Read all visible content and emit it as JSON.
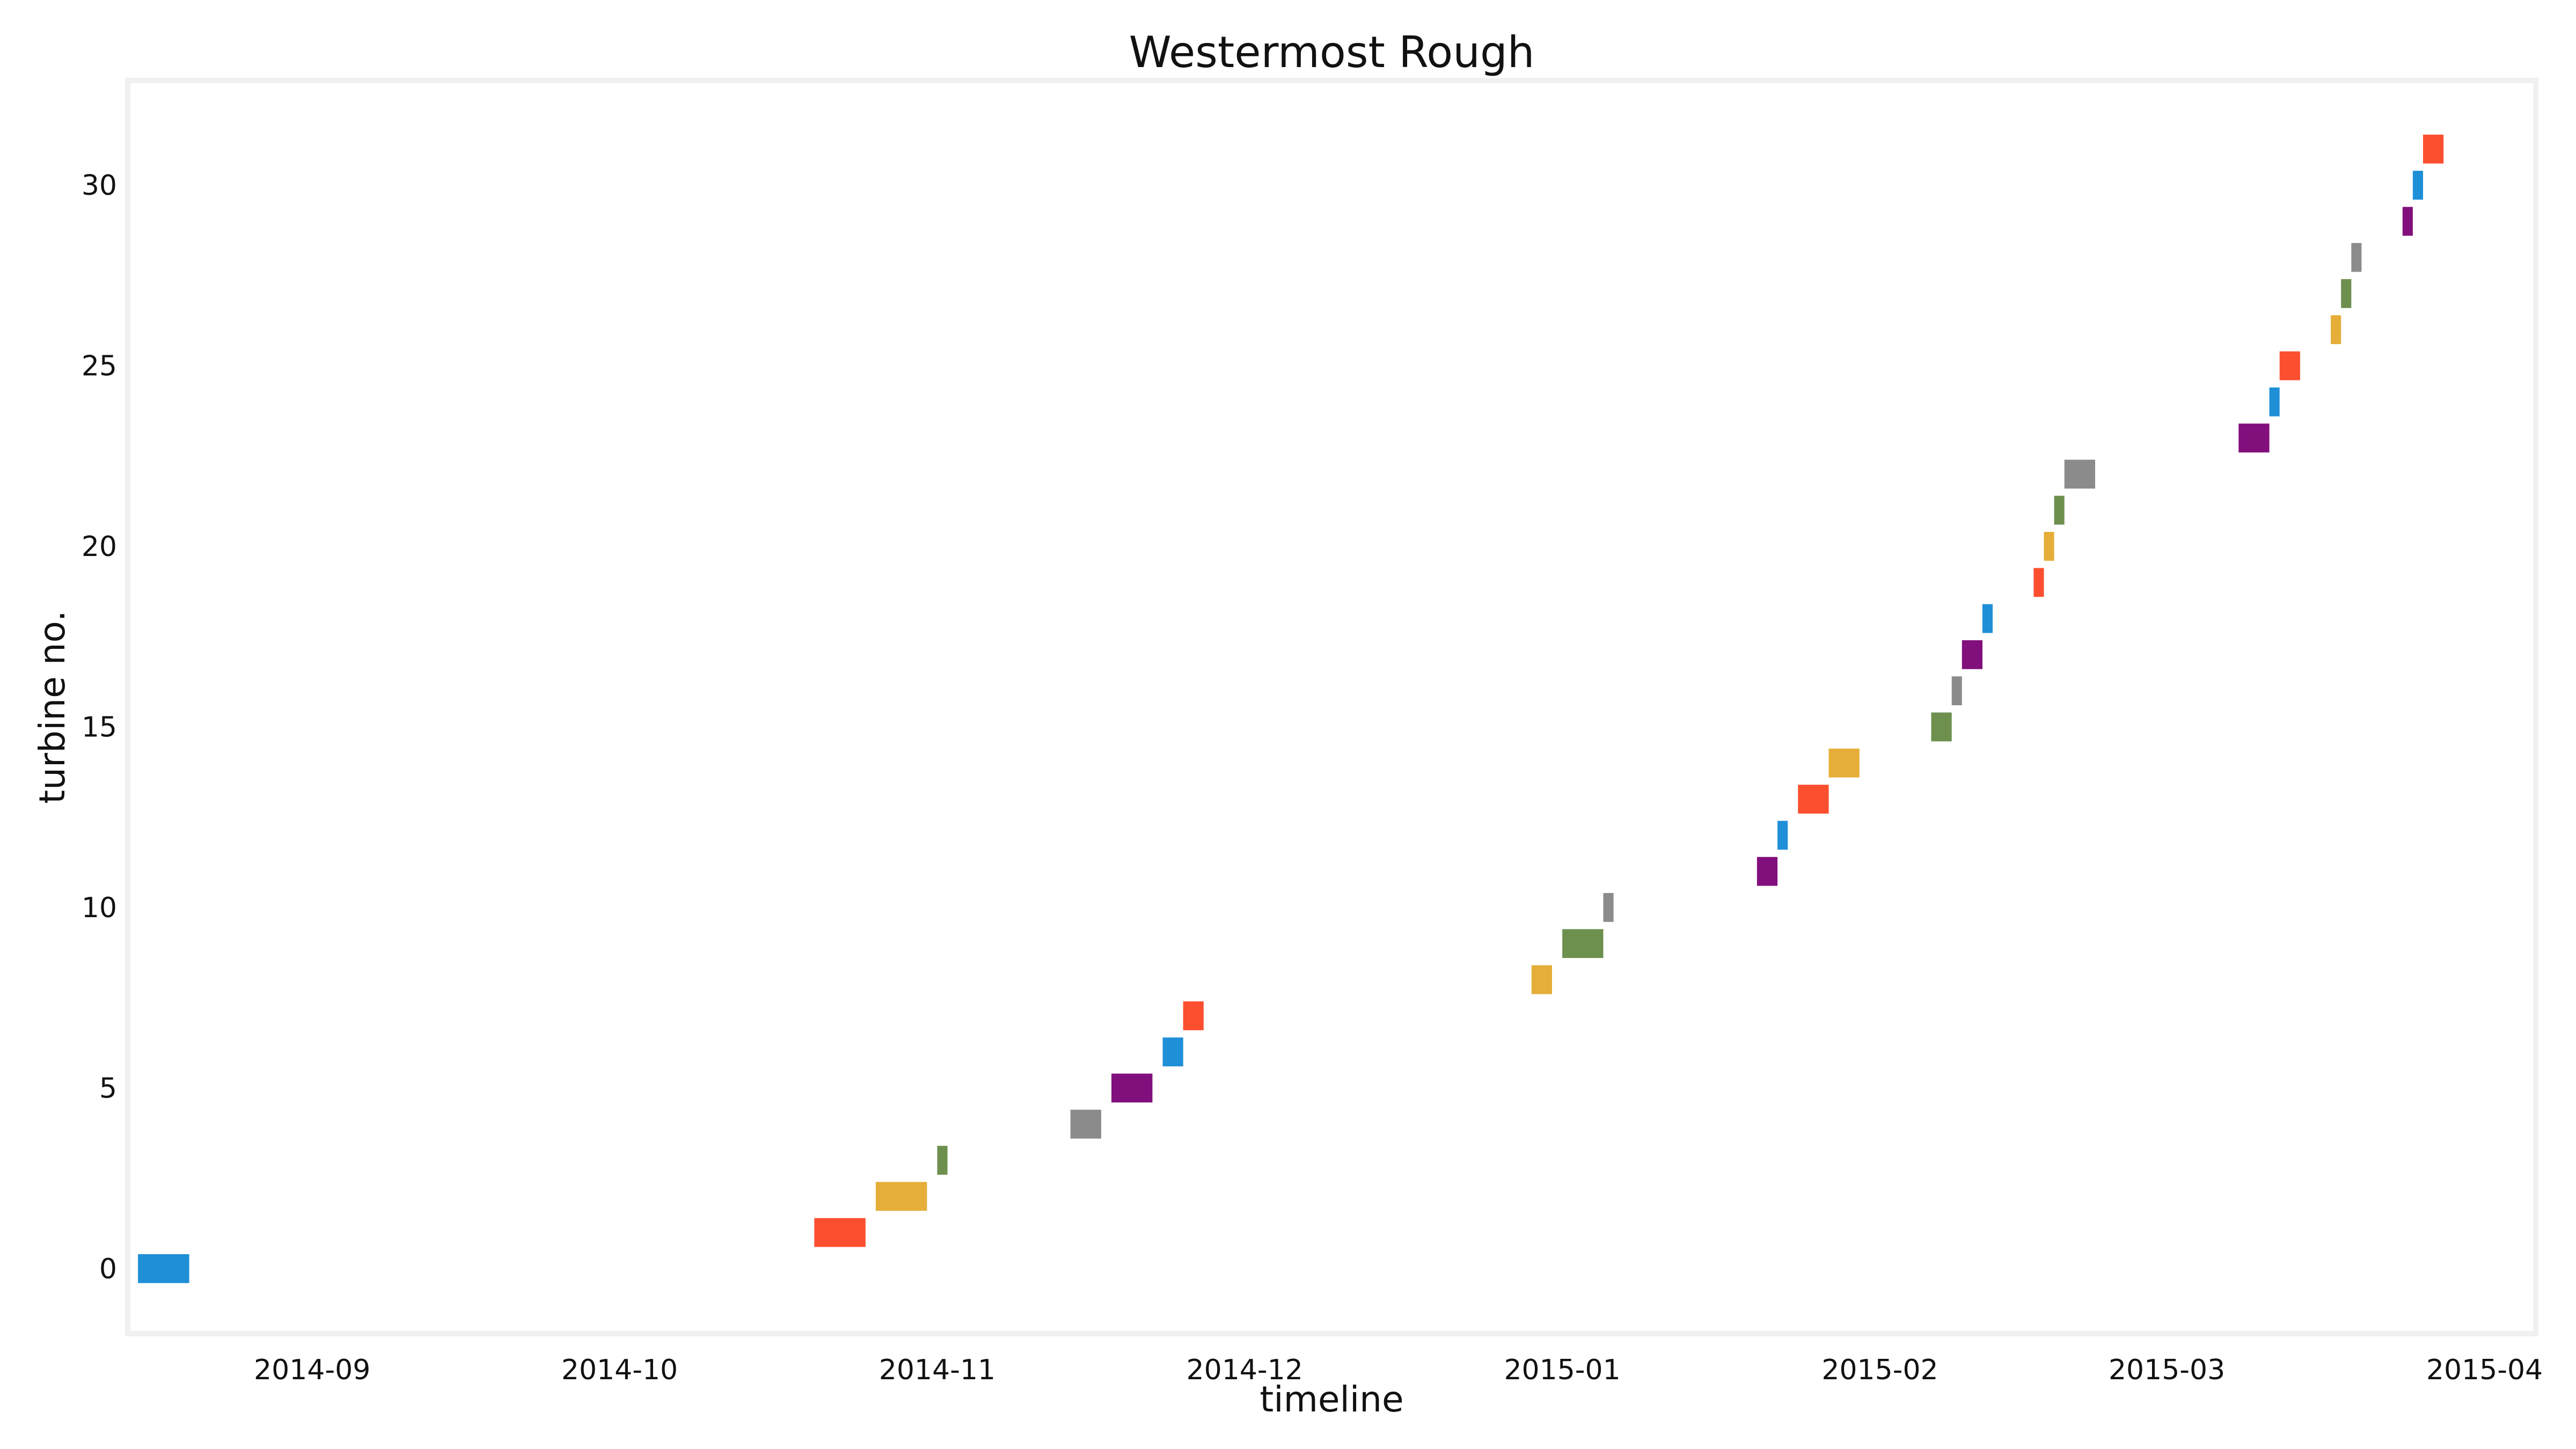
{
  "chart_data": {
    "type": "gantt",
    "title": "Westermost Rough",
    "xlabel": "timeline",
    "ylabel": "turbine no.",
    "x_axis_type": "date",
    "xlim": [
      "2014-08-14",
      "2015-04-06"
    ],
    "ylim": [
      -1.8,
      32.9
    ],
    "grid": false,
    "x_ticks": [
      "2014-09",
      "2014-10",
      "2014-11",
      "2014-12",
      "2015-01",
      "2015-02",
      "2015-03",
      "2015-04"
    ],
    "y_ticks": [
      "0",
      "5",
      "10",
      "15",
      "20",
      "25",
      "30"
    ],
    "bars": [
      {
        "turbine": 0,
        "start": "2014-08-15",
        "end": "2014-08-20",
        "color": "#1f8fd8"
      },
      {
        "turbine": 1,
        "start": "2014-10-20",
        "end": "2014-10-25",
        "color": "#fc4f30"
      },
      {
        "turbine": 2,
        "start": "2014-10-26",
        "end": "2014-10-31",
        "color": "#e5ae38"
      },
      {
        "turbine": 3,
        "start": "2014-11-01",
        "end": "2014-11-02",
        "color": "#6d904f"
      },
      {
        "turbine": 4,
        "start": "2014-11-14",
        "end": "2014-11-17",
        "color": "#8b8b8b"
      },
      {
        "turbine": 5,
        "start": "2014-11-18",
        "end": "2014-11-22",
        "color": "#810f7c"
      },
      {
        "turbine": 6,
        "start": "2014-11-23",
        "end": "2014-11-25",
        "color": "#1f8fd8"
      },
      {
        "turbine": 7,
        "start": "2014-11-25",
        "end": "2014-11-27",
        "color": "#fc4f30"
      },
      {
        "turbine": 8,
        "start": "2014-12-29",
        "end": "2014-12-31",
        "color": "#e5ae38"
      },
      {
        "turbine": 9,
        "start": "2015-01-01",
        "end": "2015-01-05",
        "color": "#6d904f"
      },
      {
        "turbine": 10,
        "start": "2015-01-05",
        "end": "2015-01-06",
        "color": "#8b8b8b"
      },
      {
        "turbine": 11,
        "start": "2015-01-20",
        "end": "2015-01-22",
        "color": "#810f7c"
      },
      {
        "turbine": 12,
        "start": "2015-01-22",
        "end": "2015-01-23",
        "color": "#1f8fd8"
      },
      {
        "turbine": 13,
        "start": "2015-01-24",
        "end": "2015-01-27",
        "color": "#fc4f30"
      },
      {
        "turbine": 14,
        "start": "2015-01-27",
        "end": "2015-01-30",
        "color": "#e5ae38"
      },
      {
        "turbine": 15,
        "start": "2015-02-06",
        "end": "2015-02-08",
        "color": "#6d904f"
      },
      {
        "turbine": 16,
        "start": "2015-02-08",
        "end": "2015-02-09",
        "color": "#8b8b8b"
      },
      {
        "turbine": 17,
        "start": "2015-02-09",
        "end": "2015-02-11",
        "color": "#810f7c"
      },
      {
        "turbine": 18,
        "start": "2015-02-11",
        "end": "2015-02-12",
        "color": "#1f8fd8"
      },
      {
        "turbine": 19,
        "start": "2015-02-16",
        "end": "2015-02-17",
        "color": "#fc4f30"
      },
      {
        "turbine": 20,
        "start": "2015-02-17",
        "end": "2015-02-18",
        "color": "#e5ae38"
      },
      {
        "turbine": 21,
        "start": "2015-02-18",
        "end": "2015-02-19",
        "color": "#6d904f"
      },
      {
        "turbine": 22,
        "start": "2015-02-19",
        "end": "2015-02-22",
        "color": "#8b8b8b"
      },
      {
        "turbine": 23,
        "start": "2015-03-08",
        "end": "2015-03-11",
        "color": "#810f7c"
      },
      {
        "turbine": 24,
        "start": "2015-03-11",
        "end": "2015-03-12",
        "color": "#1f8fd8"
      },
      {
        "turbine": 25,
        "start": "2015-03-12",
        "end": "2015-03-14",
        "color": "#fc4f30"
      },
      {
        "turbine": 26,
        "start": "2015-03-17",
        "end": "2015-03-18",
        "color": "#e5ae38"
      },
      {
        "turbine": 27,
        "start": "2015-03-18",
        "end": "2015-03-19",
        "color": "#6d904f"
      },
      {
        "turbine": 28,
        "start": "2015-03-19",
        "end": "2015-03-20",
        "color": "#8b8b8b"
      },
      {
        "turbine": 29,
        "start": "2015-03-24",
        "end": "2015-03-25",
        "color": "#810f7c"
      },
      {
        "turbine": 30,
        "start": "2015-03-25",
        "end": "2015-03-26",
        "color": "#1f8fd8"
      },
      {
        "turbine": 31,
        "start": "2015-03-26",
        "end": "2015-03-28",
        "color": "#fc4f30"
      }
    ]
  }
}
